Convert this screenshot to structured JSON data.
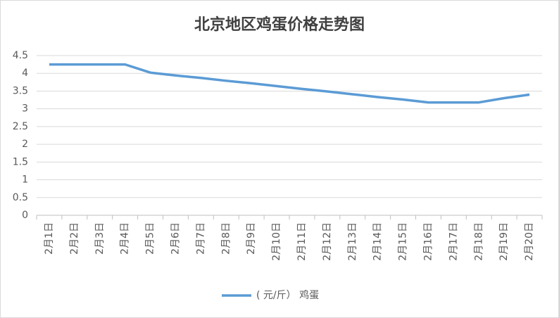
{
  "chart_data": {
    "type": "line",
    "title": "北京地区鸡蛋价格走势图",
    "categories": [
      "2月1日",
      "2月2日",
      "2月3日",
      "2月4日",
      "2月5日",
      "2月6日",
      "2月7日",
      "2月8日",
      "2月9日",
      "2月10日",
      "2月11日",
      "2月12日",
      "2月13日",
      "2月14日",
      "2月15日",
      "2月16日",
      "2月17日",
      "2月18日",
      "2月19日",
      "2月20日"
    ],
    "series": [
      {
        "name": "( 元/斤） 鸡蛋",
        "color": "#5b9bd5",
        "values": [
          4.25,
          4.25,
          4.25,
          4.25,
          4.02,
          3.94,
          3.87,
          3.79,
          3.72,
          3.64,
          3.56,
          3.49,
          3.41,
          3.33,
          3.26,
          3.18,
          3.18,
          3.18,
          3.3,
          3.4
        ]
      }
    ],
    "ylim": [
      0,
      4.5
    ],
    "yticks": [
      0,
      0.5,
      1,
      1.5,
      2,
      2.5,
      3,
      3.5,
      4,
      4.5
    ],
    "grid": true,
    "legend": "bottom"
  }
}
